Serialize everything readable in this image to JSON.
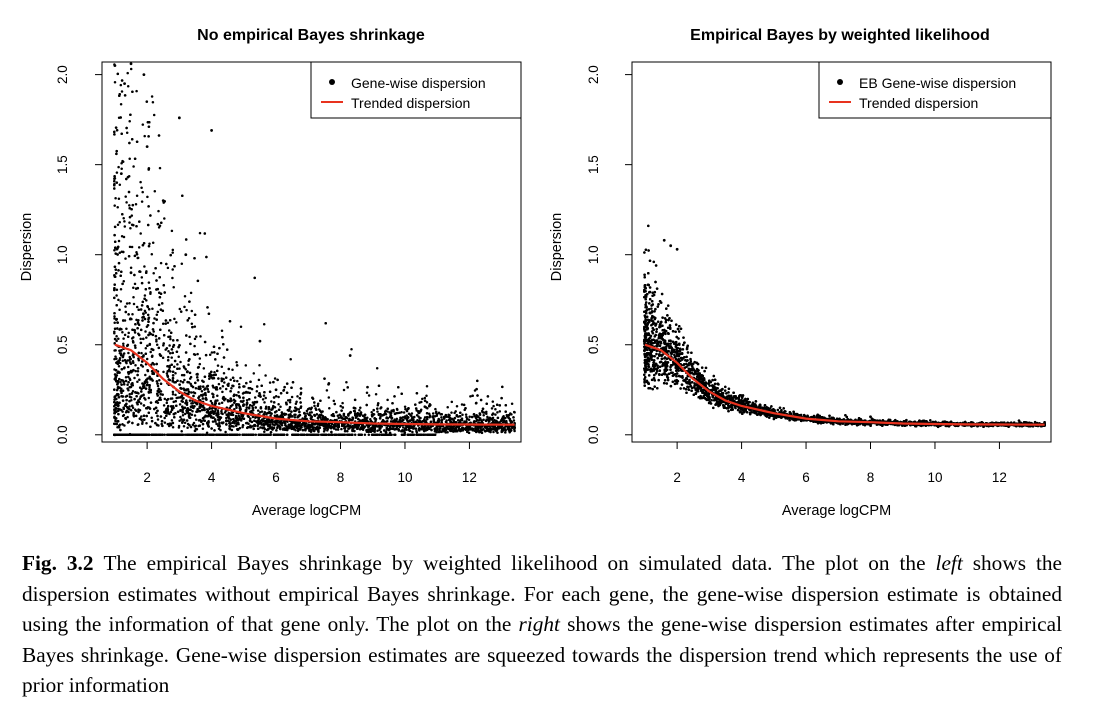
{
  "charts_common": {
    "ylabel": "Dispersion",
    "xlabel": "Average logCPM",
    "xticks": [
      2,
      4,
      6,
      8,
      10,
      12
    ],
    "yticks": [
      "0.0",
      "0.5",
      "1.0",
      "1.5",
      "2.0"
    ],
    "xlim": [
      0.6,
      13.6
    ],
    "ylim": [
      -0.04,
      2.07
    ]
  },
  "chart_data": [
    {
      "type": "scatter",
      "title": "No empirical Bayes shrinkage",
      "xlabel": "Average logCPM",
      "ylabel": "Dispersion",
      "xlim": [
        0.6,
        13.6
      ],
      "ylim": [
        -0.04,
        2.07
      ],
      "legend_position": "top-right",
      "series": [
        {
          "name": "Gene-wise dispersion",
          "style": "points",
          "color": "#000000",
          "note_points": "dense cloud of ~5000 genes: spread 0–2.1 at logCPM 1–3, narrowing to ~0–0.2 by logCPM 8–13",
          "sample": [
            [
              1.0,
              2.05
            ],
            [
              1.3,
              1.95
            ],
            [
              1.5,
              2.06
            ],
            [
              1.9,
              2.0
            ],
            [
              3.0,
              1.76
            ],
            [
              4.0,
              1.69
            ],
            [
              2.0,
              1.6
            ],
            [
              1.2,
              1.45
            ],
            [
              2.5,
              1.3
            ],
            [
              3.2,
              1.0
            ],
            [
              1.5,
              0.9
            ],
            [
              5.5,
              0.52
            ],
            [
              8.3,
              0.44
            ],
            [
              1.0,
              0.0
            ],
            [
              6.0,
              0.25
            ],
            [
              10.0,
              0.1
            ],
            [
              13.4,
              0.04
            ]
          ]
        },
        {
          "name": "Trended dispersion",
          "style": "line",
          "color": "#e8321e",
          "x": [
            1.0,
            1.5,
            2.0,
            2.5,
            3.0,
            3.5,
            4.0,
            5.0,
            6.0,
            7.0,
            8.0,
            9.0,
            10.0,
            11.0,
            12.0,
            13.4
          ],
          "y": [
            0.5,
            0.47,
            0.4,
            0.31,
            0.24,
            0.19,
            0.16,
            0.12,
            0.09,
            0.075,
            0.07,
            0.063,
            0.06,
            0.058,
            0.057,
            0.056
          ]
        }
      ]
    },
    {
      "type": "scatter",
      "title": "Empirical Bayes by weighted likelihood",
      "xlabel": "Average logCPM",
      "ylabel": "Dispersion",
      "xlim": [
        0.6,
        13.6
      ],
      "ylim": [
        -0.04,
        2.07
      ],
      "legend_position": "top-right",
      "series": [
        {
          "name": "EB Gene-wise dispersion",
          "style": "points",
          "color": "#000000",
          "note_points": "estimates squeezed towards trend: ~0.35–1.08 at logCPM 1, tightly around trend beyond logCPM 4",
          "sample": [
            [
              1.6,
              1.08
            ],
            [
              1.8,
              1.05
            ],
            [
              2.0,
              1.03
            ],
            [
              1.0,
              0.82
            ],
            [
              1.0,
              0.4
            ],
            [
              2.0,
              0.5
            ],
            [
              3.0,
              0.3
            ],
            [
              5.0,
              0.12
            ],
            [
              8.0,
              0.1
            ],
            [
              12.0,
              0.06
            ]
          ]
        },
        {
          "name": "Trended dispersion",
          "style": "line",
          "color": "#e8321e",
          "x": [
            1.0,
            1.5,
            2.0,
            2.5,
            3.0,
            3.5,
            4.0,
            5.0,
            6.0,
            7.0,
            8.0,
            9.0,
            10.0,
            11.0,
            12.0,
            13.4
          ],
          "y": [
            0.5,
            0.47,
            0.4,
            0.31,
            0.24,
            0.19,
            0.16,
            0.12,
            0.09,
            0.075,
            0.07,
            0.063,
            0.06,
            0.058,
            0.057,
            0.056
          ]
        }
      ]
    }
  ],
  "caption": {
    "label": "Fig. 3.2",
    "part1": "The empirical Bayes shrinkage by weighted likelihood on simulated data. The plot on the ",
    "em1": "left",
    "part2": " shows the dispersion estimates without empirical Bayes shrinkage. For each gene, the gene-wise dispersion estimate is obtained using the information of that gene only. The plot on the ",
    "em2": "right",
    "part3": " shows the gene-wise dispersion estimates after empirical Bayes shrinkage. Gene-wise dispersion estimates are squeezed towards the dispersion trend which represents the use of prior information"
  }
}
